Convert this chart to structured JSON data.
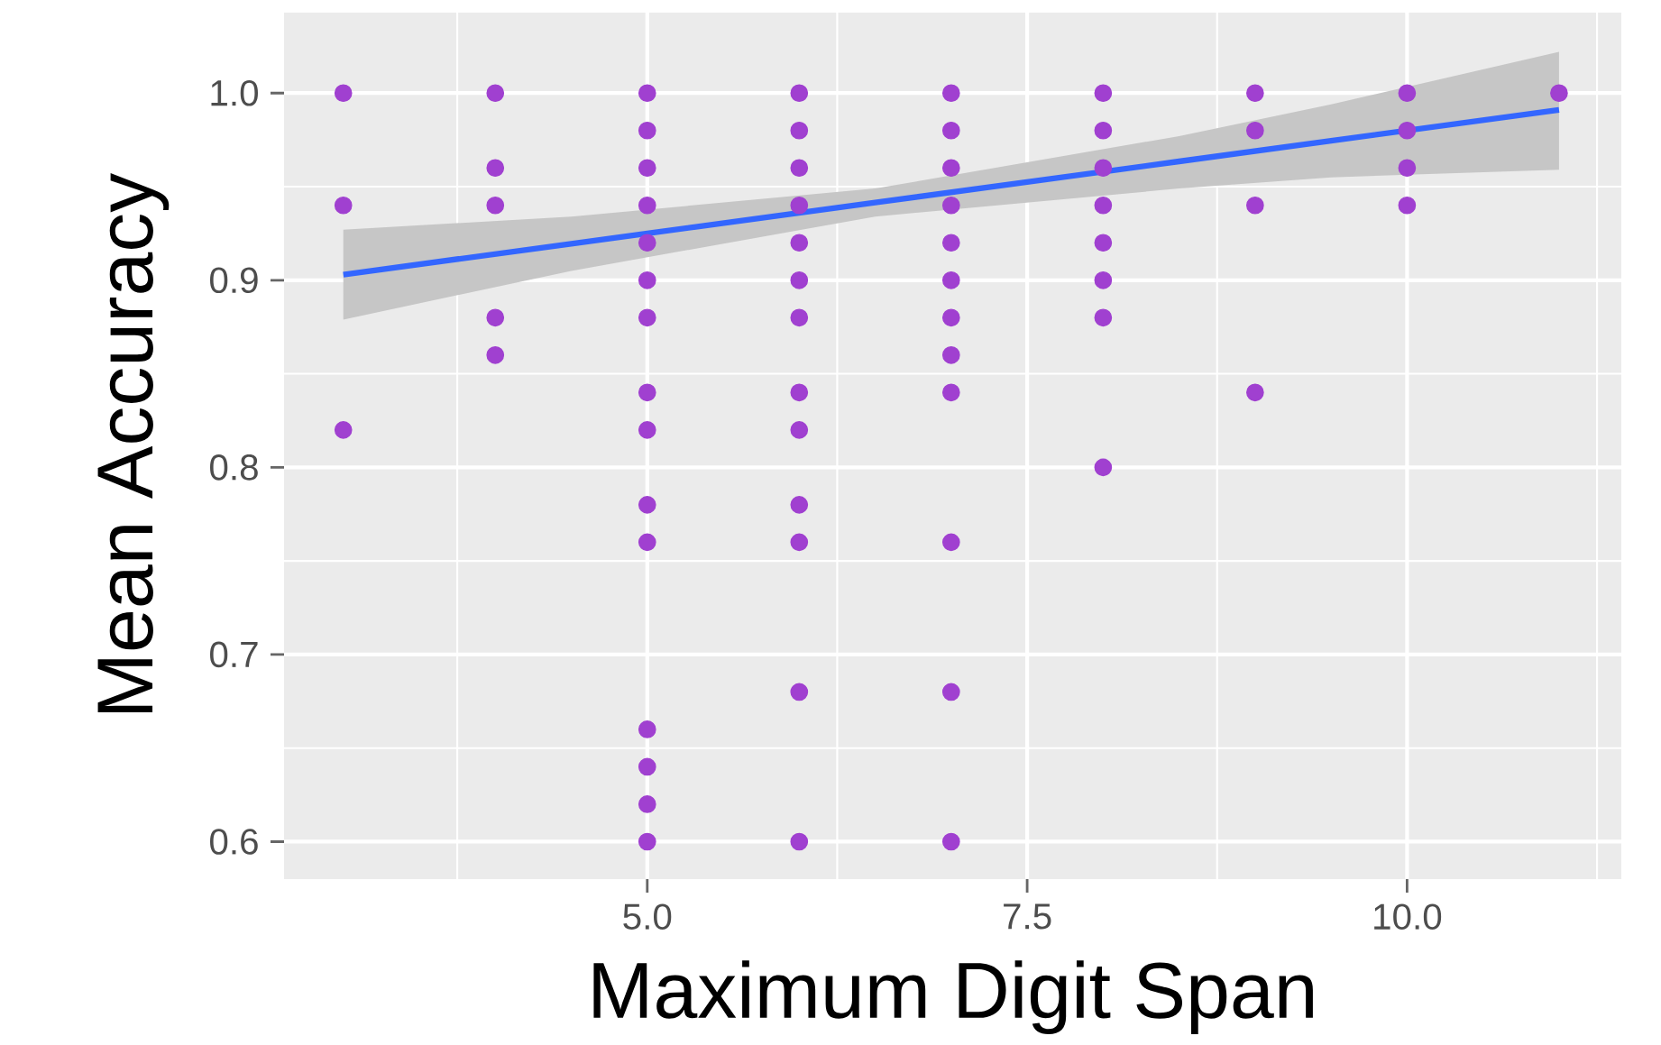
{
  "chart_data": {
    "type": "scatter",
    "xlabel": "Maximum Digit Span",
    "ylabel": "Mean Accuracy",
    "xlim": [
      2.61,
      11.41
    ],
    "ylim": [
      0.58,
      1.043
    ],
    "xticks": [
      {
        "value": 5,
        "label": "5.0"
      },
      {
        "value": 7.5,
        "label": "7.5"
      },
      {
        "value": 10,
        "label": "10.0"
      }
    ],
    "yticks": [
      {
        "value": 0.6,
        "label": "0.6"
      },
      {
        "value": 0.7,
        "label": "0.7"
      },
      {
        "value": 0.8,
        "label": "0.8"
      },
      {
        "value": 0.9,
        "label": "0.9"
      },
      {
        "value": 1.0,
        "label": "1.0"
      }
    ],
    "grid": true,
    "series": [
      {
        "marker": "circle",
        "color": "#a040d0",
        "x": [
          3,
          3,
          3,
          4,
          4,
          4,
          4,
          4,
          5,
          5,
          5,
          5,
          5,
          5,
          5,
          5,
          5,
          5,
          5,
          5,
          5,
          5,
          5,
          6,
          6,
          6,
          6,
          6,
          6,
          6,
          6,
          6,
          6,
          6,
          6,
          6,
          7,
          7,
          7,
          7,
          7,
          7,
          7,
          7,
          7,
          7,
          7,
          7,
          8,
          8,
          8,
          8,
          8,
          8,
          8,
          8,
          9,
          9,
          9,
          9,
          10,
          10,
          10,
          10,
          11
        ],
        "values": [
          1.0,
          0.94,
          0.82,
          1.0,
          0.96,
          0.94,
          0.88,
          0.86,
          1.0,
          0.98,
          0.96,
          0.94,
          0.92,
          0.9,
          0.88,
          0.84,
          0.82,
          0.78,
          0.76,
          0.66,
          0.64,
          0.62,
          0.6,
          1.0,
          0.98,
          0.96,
          0.94,
          0.92,
          0.9,
          0.88,
          0.84,
          0.82,
          0.78,
          0.76,
          0.68,
          0.6,
          1.0,
          0.98,
          0.96,
          0.94,
          0.92,
          0.9,
          0.88,
          0.86,
          0.84,
          0.76,
          0.68,
          0.6,
          1.0,
          0.98,
          0.96,
          0.94,
          0.92,
          0.9,
          0.88,
          0.8,
          1.0,
          0.98,
          0.94,
          0.84,
          1.0,
          0.98,
          0.96,
          0.94,
          1.0
        ]
      },
      {
        "type": "line",
        "marker": "none",
        "color": "#3366ff",
        "x": [
          3,
          4.5,
          6.5,
          8.5,
          9.5,
          11
        ],
        "values": [
          0.903,
          0.9195,
          0.9415,
          0.9635,
          0.9745,
          0.991
        ],
        "lower": [
          0.879,
          0.905,
          0.934,
          0.949,
          0.955,
          0.959
        ],
        "upper": [
          0.927,
          0.934,
          0.949,
          0.977,
          0.994,
          1.022
        ]
      }
    ]
  }
}
